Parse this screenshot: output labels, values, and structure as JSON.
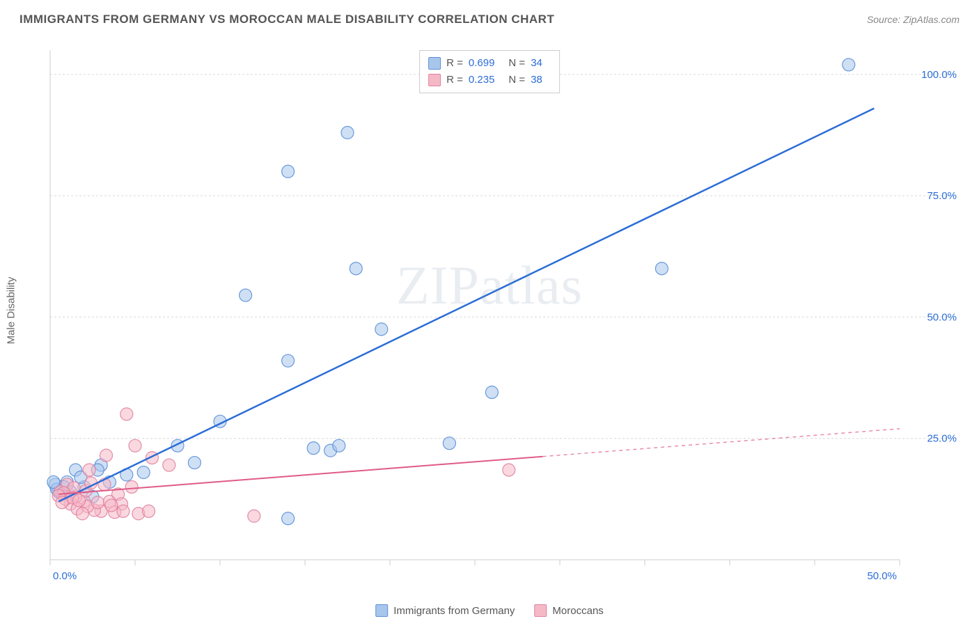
{
  "title": "IMMIGRANTS FROM GERMANY VS MOROCCAN MALE DISABILITY CORRELATION CHART",
  "source_prefix": "Source: ",
  "source": "ZipAtlas.com",
  "ylabel": "Male Disability",
  "watermark_a": "ZIP",
  "watermark_b": "atlas",
  "chart": {
    "type": "scatter",
    "xlim": [
      0,
      50
    ],
    "ylim": [
      0,
      105
    ],
    "x_ticks": [
      0,
      5,
      10,
      15,
      20,
      25,
      30,
      35,
      40,
      45,
      50
    ],
    "x_tick_labels": {
      "0": "0.0%",
      "50": "50.0%"
    },
    "y_ticks": [
      25,
      50,
      75,
      100
    ],
    "y_tick_labels": {
      "25": "25.0%",
      "50": "50.0%",
      "75": "75.0%",
      "100": "100.0%"
    },
    "background_color": "#ffffff",
    "grid_color": "#d9d9d9",
    "axis_color": "#cccccc",
    "tick_label_color": "#2b6dd6",
    "tick_label_fontsize": 15,
    "marker_radius": 9,
    "marker_opacity": 0.55,
    "marker_stroke_opacity": 0.9,
    "series": [
      {
        "name": "Immigrants from Germany",
        "color_fill": "#a8c6ec",
        "color_stroke": "#5a8fd6",
        "R": "0.699",
        "N": "34",
        "regression": {
          "x1": 0.5,
          "y1": 12,
          "x2": 48.5,
          "y2": 93,
          "dashed_from_x": null,
          "color": "#2b6dd6",
          "width": 2.5
        },
        "points": [
          [
            47,
            102
          ],
          [
            36,
            60
          ],
          [
            18,
            60
          ],
          [
            17.5,
            88
          ],
          [
            14,
            80
          ],
          [
            19.5,
            47.5
          ],
          [
            26,
            34.5
          ],
          [
            14,
            41
          ],
          [
            10,
            28.5
          ],
          [
            11.5,
            54.5
          ],
          [
            15.5,
            23
          ],
          [
            16.5,
            22.5
          ],
          [
            17,
            23.5
          ],
          [
            7.5,
            23.5
          ],
          [
            8.5,
            20
          ],
          [
            23.5,
            24
          ],
          [
            14,
            8.5
          ],
          [
            5.5,
            18
          ],
          [
            4.5,
            17.5
          ],
          [
            3,
            19.5
          ],
          [
            1.5,
            18.5
          ],
          [
            1,
            16
          ],
          [
            0.8,
            15
          ],
          [
            0.5,
            14
          ],
          [
            0.7,
            13.5
          ],
          [
            1.2,
            14
          ],
          [
            2,
            15
          ],
          [
            2.5,
            13
          ],
          [
            1.8,
            17
          ],
          [
            0.3,
            15.5
          ],
          [
            0.4,
            14.5
          ],
          [
            0.2,
            16
          ],
          [
            2.8,
            18.5
          ],
          [
            3.5,
            16
          ]
        ]
      },
      {
        "name": "Moroccans",
        "color_fill": "#f5b8c7",
        "color_stroke": "#e081a0",
        "R": "0.235",
        "N": "38",
        "regression": {
          "x1": 0.5,
          "y1": 13.5,
          "x2": 50,
          "y2": 27,
          "dashed_from_x": 29,
          "color": "#e05a87",
          "width": 2
        },
        "points": [
          [
            27,
            18.5
          ],
          [
            12,
            9
          ],
          [
            7,
            19.5
          ],
          [
            6,
            21
          ],
          [
            4.5,
            30
          ],
          [
            5,
            23.5
          ],
          [
            3.3,
            21.5
          ],
          [
            3.5,
            12
          ],
          [
            4,
            13.5
          ],
          [
            4.2,
            11.5
          ],
          [
            5.2,
            9.5
          ],
          [
            5.8,
            10
          ],
          [
            3,
            10
          ],
          [
            4.8,
            15
          ],
          [
            2,
            12
          ],
          [
            2.3,
            18.5
          ],
          [
            1.5,
            13
          ],
          [
            1.2,
            11.5
          ],
          [
            1.6,
            10.5
          ],
          [
            0.9,
            12.5
          ],
          [
            0.6,
            14
          ],
          [
            1,
            15.5
          ],
          [
            2.6,
            10.2
          ],
          [
            3.8,
            9.8
          ],
          [
            1.4,
            14.8
          ],
          [
            0.8,
            13.8
          ],
          [
            2.2,
            11
          ],
          [
            1.9,
            9.5
          ],
          [
            0.5,
            13.2
          ],
          [
            2.8,
            11.8
          ],
          [
            3.2,
            15.5
          ],
          [
            2.1,
            14.2
          ],
          [
            1.3,
            12.8
          ],
          [
            0.7,
            11.8
          ],
          [
            1.7,
            12.2
          ],
          [
            3.6,
            11.2
          ],
          [
            4.3,
            10
          ],
          [
            2.4,
            15.8
          ]
        ]
      }
    ],
    "legend_stats": {
      "R_label": "R =",
      "N_label": "N ="
    },
    "bottom_legend": {
      "series1": "Immigrants from Germany",
      "series2": "Moroccans"
    }
  }
}
